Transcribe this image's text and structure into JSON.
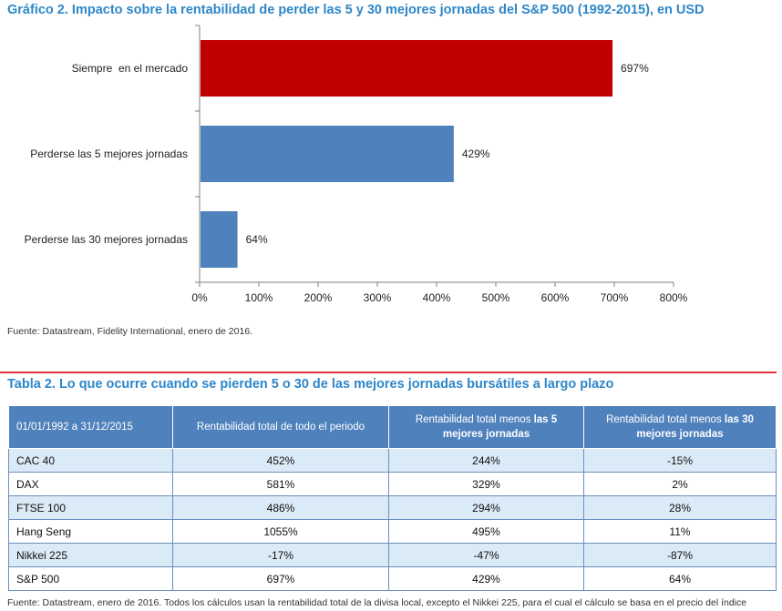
{
  "chart_title": "Gráfico 2. Impacto sobre la rentabilidad de perder las 5 y 30 mejores jornadas del S&P 500 (1992-2015), en USD",
  "chart_data": {
    "type": "bar",
    "orientation": "horizontal",
    "title": "Gráfico 2. Impacto sobre la rentabilidad de perder las 5 y 30 mejores jornadas del S&P 500 (1992-2015), en USD",
    "categories": [
      "Siempre  en el mercado",
      "Perderse las 5 mejores jornadas",
      "Perderse las 30 mejores jornadas"
    ],
    "values": [
      697,
      429,
      64
    ],
    "value_labels": [
      "697%",
      "429%",
      "64%"
    ],
    "bar_colors": [
      "#c00000",
      "#4f81bd",
      "#4f81bd"
    ],
    "xlim": [
      0,
      800
    ],
    "x_ticks": [
      0,
      100,
      200,
      300,
      400,
      500,
      600,
      700,
      800
    ],
    "x_tick_labels": [
      "0%",
      "100%",
      "200%",
      "300%",
      "400%",
      "500%",
      "600%",
      "700%",
      "800%"
    ],
    "grid": false
  },
  "source_chart": "Fuente: Datastream, Fidelity International, enero de 2016.",
  "table_title": "Tabla 2. Lo que ocurre cuando se pierden 5 o 30 de las mejores jornadas bursátiles a largo plazo",
  "table": {
    "headers": [
      {
        "plain": "01/01/1992 a 31/12/2015",
        "bold": ""
      },
      {
        "plain": "Rentabilidad total de todo el periodo",
        "bold": ""
      },
      {
        "plain": "Rentabilidad total menos ",
        "bold": "las 5 mejores jornadas"
      },
      {
        "plain": "Rentabilidad total menos ",
        "bold": "las 30 mejores jornadas"
      }
    ],
    "rows": [
      [
        "CAC 40",
        "452%",
        "244%",
        "-15%"
      ],
      [
        "DAX",
        "581%",
        "329%",
        "2%"
      ],
      [
        "FTSE 100",
        "486%",
        "294%",
        "28%"
      ],
      [
        "Hang Seng",
        "1055%",
        "495%",
        "11%"
      ],
      [
        "Nikkei 225",
        "-17%",
        "-47%",
        "-87%"
      ],
      [
        "S&P 500",
        "697%",
        "429%",
        "64%"
      ]
    ]
  },
  "source_table": "Fuente: Datastream, enero de 2016. Todos los cálculos usan la rentabilidad total de la divisa local, excepto el Nikkei 225, para el cual el cálculo se basa en el precio del índice"
}
